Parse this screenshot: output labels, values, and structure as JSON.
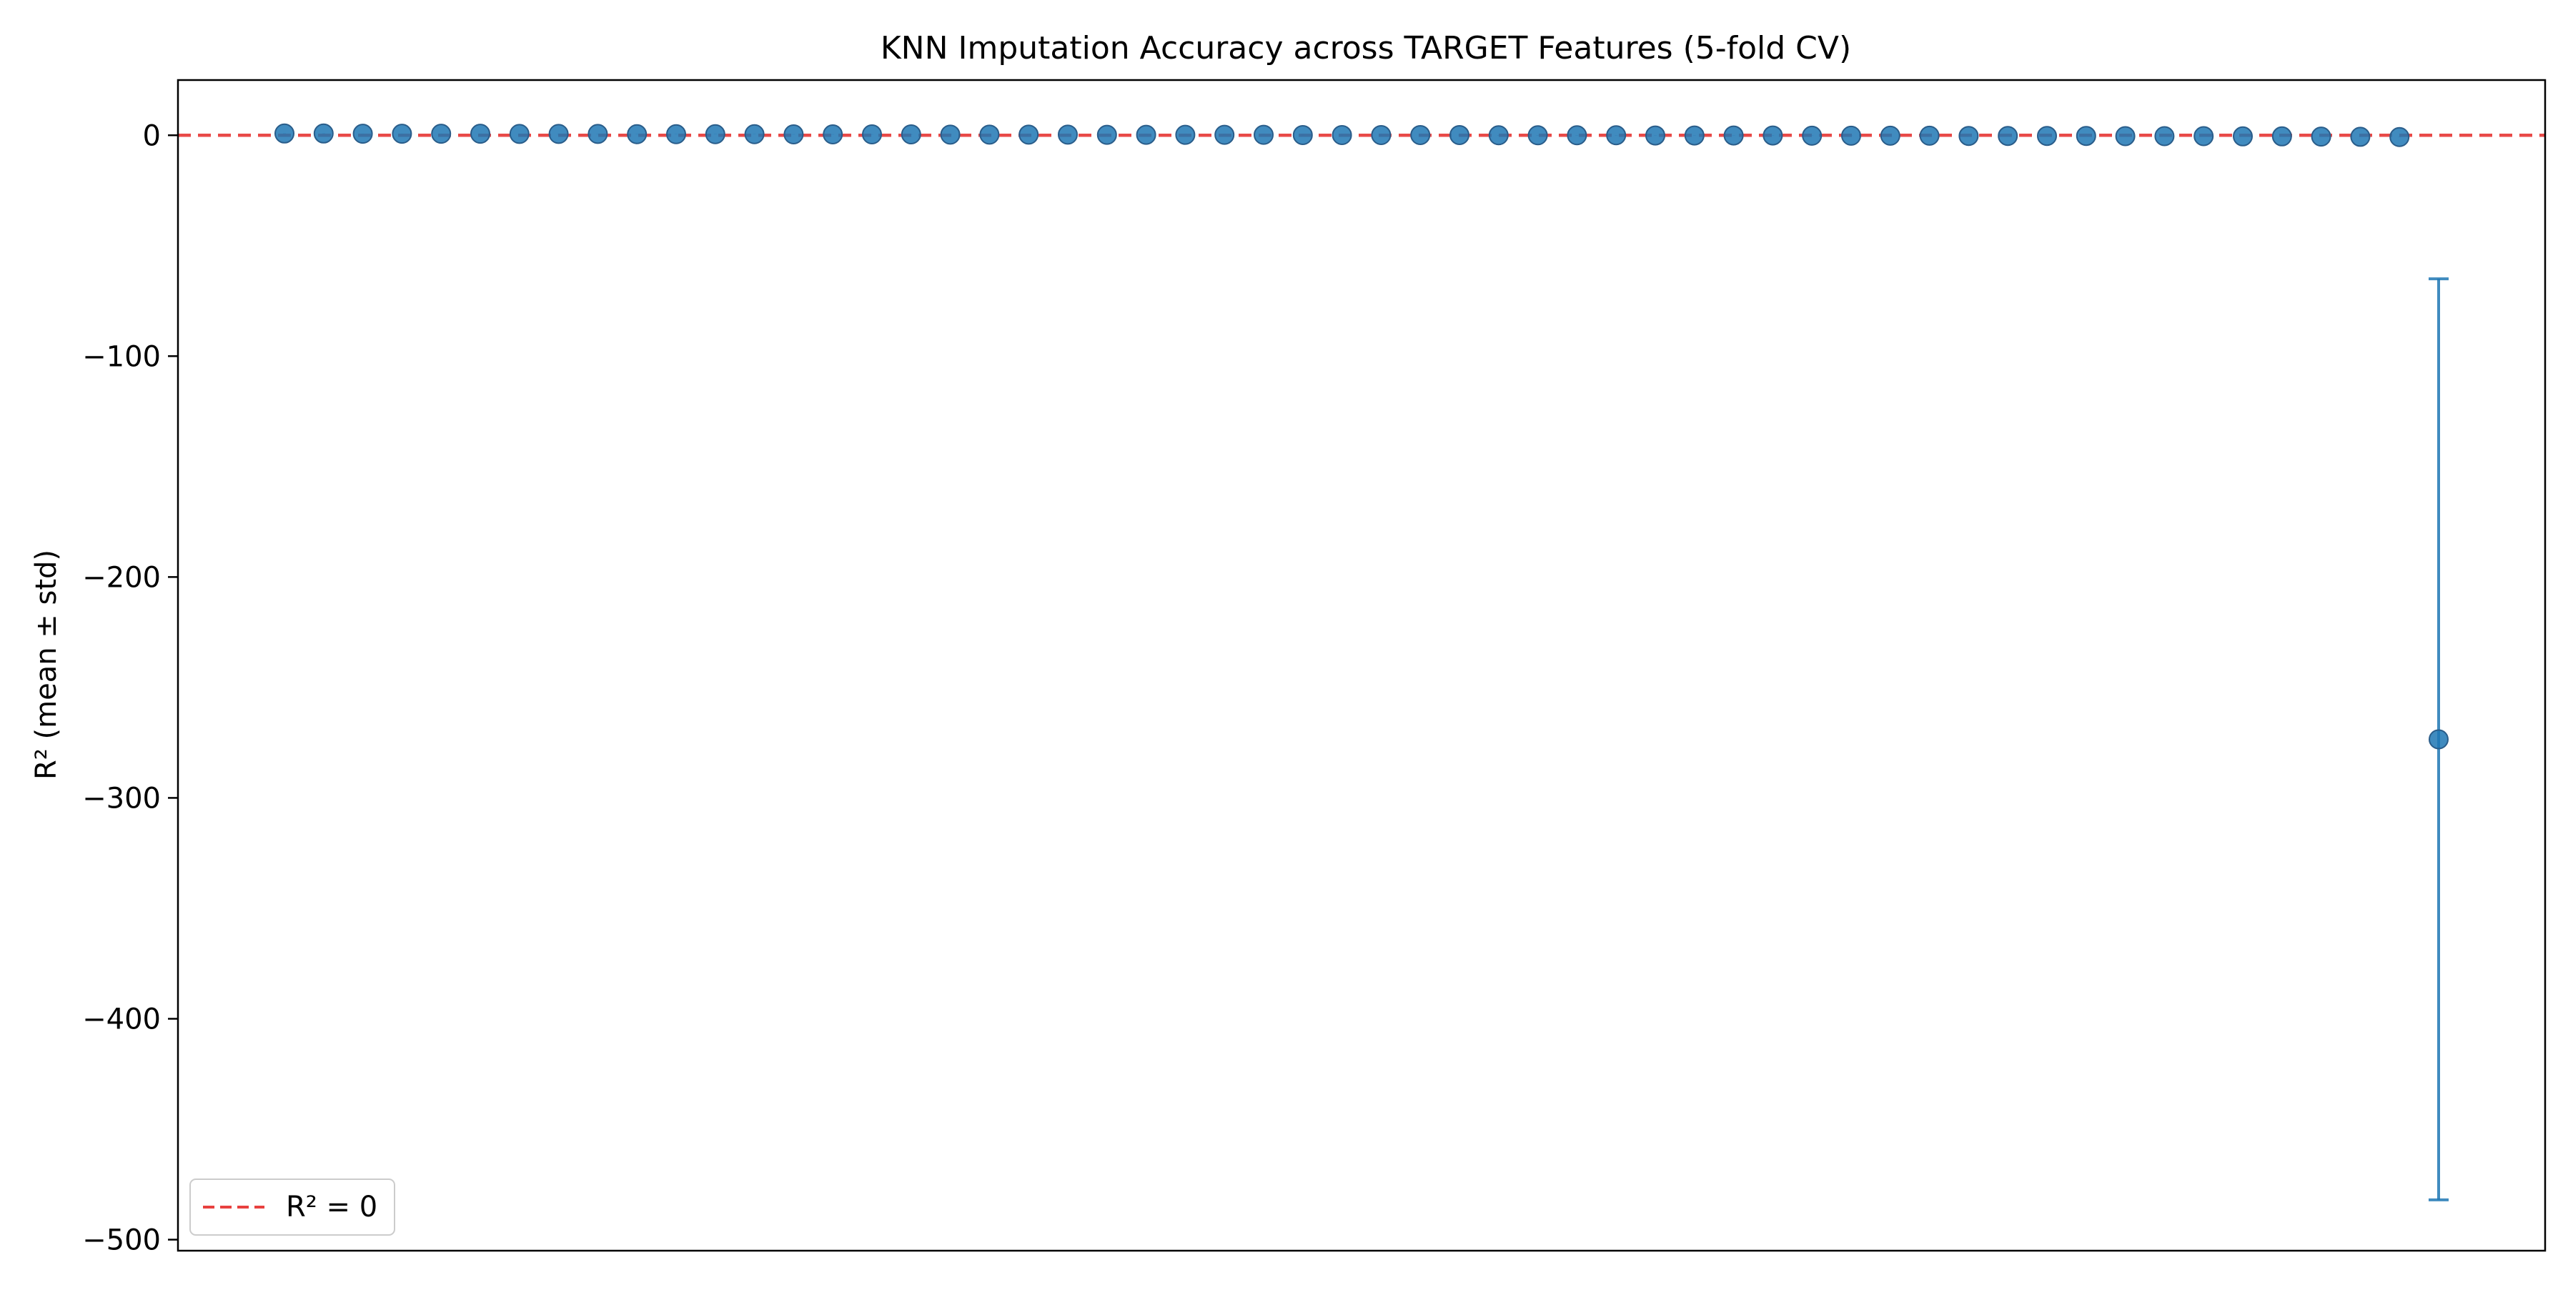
{
  "chart_data": {
    "type": "scatter",
    "title": "KNN Imputation Accuracy across TARGET Features (5-fold CV)",
    "xlabel": "",
    "ylabel": "R² (mean ± std)",
    "ylim": [
      -505,
      25
    ],
    "yticks": [
      0,
      -100,
      -200,
      -300,
      -400,
      -500
    ],
    "ytick_labels": [
      "0",
      "−100",
      "−200",
      "−300",
      "−400",
      "−500"
    ],
    "xtick_labels_visible": false,
    "grid": false,
    "legend": {
      "placement": "lower-left",
      "entries": [
        {
          "label": "R² = 0",
          "style": "dashed",
          "color": "#e8413f"
        }
      ]
    },
    "reference_line": {
      "y": 0,
      "label": "R² = 0",
      "color": "#e8413f",
      "style": "dashed"
    },
    "marker_color": "#1f77b4",
    "series": [
      {
        "x": [
          1,
          2,
          3,
          4,
          5,
          6,
          7,
          8,
          9,
          10,
          11,
          12,
          13,
          14,
          15,
          16,
          17,
          18,
          19,
          20,
          21,
          22,
          23,
          24,
          25,
          26,
          27,
          28,
          29,
          30,
          31,
          32,
          33,
          34,
          35,
          36,
          37,
          38,
          39,
          40,
          41,
          42,
          43,
          44,
          45,
          46,
          47,
          48,
          49,
          50,
          51,
          52,
          53,
          54,
          55,
          56
        ],
        "y": [
          0.8,
          0.8,
          0.7,
          0.7,
          0.7,
          0.7,
          0.6,
          0.6,
          0.6,
          0.5,
          0.5,
          0.5,
          0.5,
          0.4,
          0.4,
          0.4,
          0.4,
          0.3,
          0.3,
          0.3,
          0.3,
          0.2,
          0.2,
          0.2,
          0.2,
          0.2,
          0.1,
          0.1,
          0.1,
          0.1,
          0.1,
          0.0,
          0.0,
          0.0,
          0.0,
          -0.1,
          -0.1,
          -0.1,
          -0.1,
          -0.2,
          -0.2,
          -0.2,
          -0.2,
          -0.3,
          -0.3,
          -0.3,
          -0.3,
          -0.4,
          -0.4,
          -0.4,
          -0.5,
          -0.5,
          -0.6,
          -0.7,
          -0.8,
          -273.5
        ],
        "err": [
          0.05,
          0.05,
          0.05,
          0.05,
          0.05,
          0.05,
          0.05,
          0.05,
          0.05,
          0.05,
          0.05,
          0.05,
          0.05,
          0.05,
          0.05,
          0.05,
          0.05,
          0.05,
          0.05,
          0.05,
          0.05,
          0.05,
          0.05,
          0.05,
          0.05,
          0.05,
          0.05,
          0.05,
          0.05,
          0.05,
          0.05,
          0.05,
          0.05,
          0.05,
          0.05,
          0.05,
          0.05,
          0.05,
          0.05,
          0.05,
          0.05,
          0.05,
          0.05,
          0.05,
          0.05,
          0.05,
          0.05,
          0.05,
          0.05,
          0.05,
          0.05,
          0.05,
          0.05,
          0.05,
          0.05,
          208.5
        ]
      }
    ]
  }
}
